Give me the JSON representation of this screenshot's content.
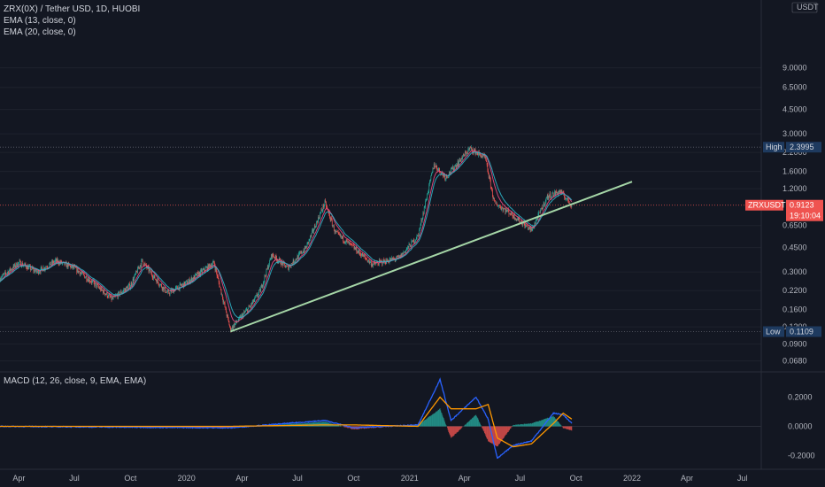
{
  "header": {
    "symbol_line": "ZRX(0X) / Tether USD, 1D, HUOBI",
    "ema1": "EMA (13, close, 0)",
    "ema2": "EMA (20, close, 0)",
    "macd": "MACD (12, 26, close, 9, EMA, EMA)"
  },
  "colors": {
    "background": "#131722",
    "up": "#26a69a",
    "down": "#ef5350",
    "ema13": "#e84a7f",
    "ema20": "#2db4c8",
    "trendline": "#a5d6a7",
    "macd_line": "#2962ff",
    "signal_line": "#ff9800",
    "high_tag": "#1e3a5f",
    "price_tag": "#ef5350"
  },
  "price_axis": {
    "currency": "USDT",
    "scale": "log",
    "labels": [
      "9.0000",
      "6.5000",
      "4.5000",
      "3.0000",
      "2.2000",
      "1.6000",
      "1.2000",
      "0.6500",
      "0.4500",
      "0.3000",
      "0.2200",
      "0.1600",
      "0.1200",
      "0.0900",
      "0.0680"
    ],
    "high": {
      "label": "High",
      "value": "2.3995"
    },
    "low": {
      "label": "Low",
      "value": "0.1109"
    },
    "last": {
      "symbol": "ZRXUSDT",
      "value": "0.9123",
      "countdown": "19:10:04"
    }
  },
  "macd_axis": {
    "labels": [
      "0.2000",
      "0.0000",
      "-0.2000"
    ]
  },
  "time_axis": {
    "labels": [
      "Apr",
      "Jul",
      "Oct",
      "2020",
      "Apr",
      "Jul",
      "Oct",
      "2021",
      "Apr",
      "Jul",
      "Oct",
      "2022",
      "Apr",
      "Jul"
    ]
  },
  "chart_data": {
    "type": "line",
    "scale": "log",
    "price_key_points": [
      [
        "2019-03-01",
        0.27
      ],
      [
        "2019-04-01",
        0.35
      ],
      [
        "2019-05-01",
        0.3
      ],
      [
        "2019-06-01",
        0.36
      ],
      [
        "2019-07-01",
        0.32
      ],
      [
        "2019-08-01",
        0.25
      ],
      [
        "2019-09-01",
        0.19
      ],
      [
        "2019-10-01",
        0.24
      ],
      [
        "2019-10-20",
        0.36
      ],
      [
        "2019-11-10",
        0.27
      ],
      [
        "2019-12-01",
        0.21
      ],
      [
        "2020-01-01",
        0.25
      ],
      [
        "2020-02-15",
        0.35
      ],
      [
        "2020-03-13",
        0.115
      ],
      [
        "2020-04-15",
        0.17
      ],
      [
        "2020-05-01",
        0.22
      ],
      [
        "2020-05-20",
        0.4
      ],
      [
        "2020-06-15",
        0.32
      ],
      [
        "2020-07-15",
        0.45
      ],
      [
        "2020-08-15",
        0.95
      ],
      [
        "2020-09-01",
        0.58
      ],
      [
        "2020-10-01",
        0.45
      ],
      [
        "2020-11-01",
        0.34
      ],
      [
        "2020-12-15",
        0.38
      ],
      [
        "2021-01-15",
        0.55
      ],
      [
        "2021-02-10",
        1.8
      ],
      [
        "2021-03-01",
        1.45
      ],
      [
        "2021-04-10",
        2.35
      ],
      [
        "2021-05-05",
        2.0
      ],
      [
        "2021-05-20",
        0.95
      ],
      [
        "2021-06-15",
        0.8
      ],
      [
        "2021-07-20",
        0.6
      ],
      [
        "2021-08-15",
        1.05
      ],
      [
        "2021-09-05",
        1.15
      ],
      [
        "2021-09-24",
        0.9123
      ]
    ],
    "trendline": [
      [
        "2020-03-13",
        0.1109
      ],
      [
        "2022-01-01",
        1.35
      ]
    ],
    "macd_key_points": [
      [
        "2019-03-01",
        0.0,
        0.0
      ],
      [
        "2020-03-13",
        -0.01,
        0.0
      ],
      [
        "2020-08-15",
        0.04,
        0.01
      ],
      [
        "2020-10-01",
        -0.01,
        0.01
      ],
      [
        "2021-01-15",
        0.01,
        0.0
      ],
      [
        "2021-02-20",
        0.32,
        0.2
      ],
      [
        "2021-03-10",
        0.04,
        0.12
      ],
      [
        "2021-04-20",
        0.2,
        0.12
      ],
      [
        "2021-05-10",
        0.05,
        0.15
      ],
      [
        "2021-05-25",
        -0.22,
        -0.08
      ],
      [
        "2021-06-20",
        -0.13,
        -0.14
      ],
      [
        "2021-07-20",
        -0.1,
        -0.12
      ],
      [
        "2021-08-25",
        0.09,
        0.02
      ],
      [
        "2021-09-10",
        0.08,
        0.09
      ],
      [
        "2021-09-24",
        0.02,
        0.05
      ]
    ]
  }
}
